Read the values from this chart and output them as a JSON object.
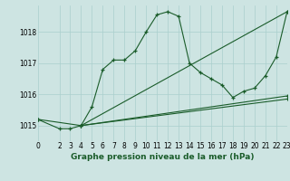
{
  "title": "Graphe pression niveau de la mer (hPa)",
  "bg_color": "#cde4e2",
  "grid_color": "#aacfcd",
  "line_color": "#1a5c2a",
  "xlim": [
    0,
    23
  ],
  "ylim": [
    1014.5,
    1018.85
  ],
  "yticks": [
    1015,
    1016,
    1017,
    1018
  ],
  "xticks": [
    0,
    2,
    3,
    4,
    5,
    6,
    7,
    8,
    9,
    10,
    11,
    12,
    13,
    14,
    15,
    16,
    17,
    18,
    19,
    20,
    21,
    22,
    23
  ],
  "line1_x": [
    0,
    2,
    3,
    4,
    5,
    6,
    7,
    8,
    9,
    10,
    11,
    12,
    13,
    14,
    15,
    16,
    17,
    18,
    19,
    20,
    21,
    22,
    23
  ],
  "line1_y": [
    1015.2,
    1014.9,
    1014.9,
    1015.0,
    1015.6,
    1016.8,
    1017.1,
    1017.1,
    1017.4,
    1018.0,
    1018.55,
    1018.65,
    1018.5,
    1017.0,
    1016.7,
    1016.5,
    1016.3,
    1015.9,
    1016.1,
    1016.2,
    1016.6,
    1017.2,
    1018.65
  ],
  "line2_x": [
    0,
    4,
    23
  ],
  "line2_y": [
    1015.2,
    1015.0,
    1018.65
  ],
  "line3_x": [
    4,
    23
  ],
  "line3_y": [
    1015.0,
    1015.85
  ],
  "line4_x": [
    4,
    23
  ],
  "line4_y": [
    1015.0,
    1015.95
  ],
  "xlabel_fontsize": 6.5,
  "tick_fontsize": 5.5
}
